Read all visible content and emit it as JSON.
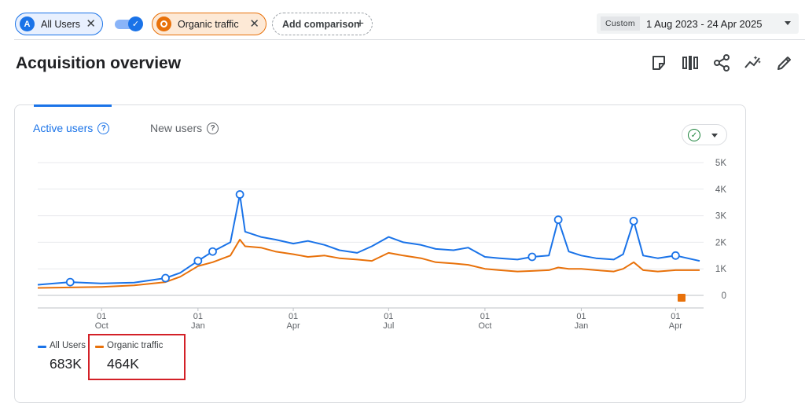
{
  "comparisons": {
    "segment_1": {
      "badge": "A",
      "label": "All Users"
    },
    "segment_2": {
      "label": "Organic traffic"
    },
    "add_label": "Add comparison"
  },
  "date_range": {
    "tag": "Custom",
    "value": "1 Aug 2023 - 24 Apr 2025"
  },
  "page_title": "Acquisition overview",
  "title_icons": [
    "edit-note-icon",
    "compare-columns-icon",
    "share-icon",
    "insights-icon",
    "pencil-icon"
  ],
  "tabs": [
    {
      "label": "Active users",
      "active": true
    },
    {
      "label": "New users",
      "active": false
    }
  ],
  "legend": [
    {
      "name": "All Users",
      "value": "683K",
      "color": "#1a73e8"
    },
    {
      "name": "Organic traffic",
      "value": "464K",
      "color": "#e8710a"
    }
  ],
  "chart_data": {
    "type": "line",
    "y_ticks": [
      "5K",
      "4K",
      "3K",
      "2K",
      "1K",
      "0"
    ],
    "ylim": [
      0,
      5000
    ],
    "x_ticks": [
      {
        "day": "01",
        "month": "Oct"
      },
      {
        "day": "01",
        "month": "Jan"
      },
      {
        "day": "01",
        "month": "Apr"
      },
      {
        "day": "01",
        "month": "Jul"
      },
      {
        "day": "01",
        "month": "Oct"
      },
      {
        "day": "01",
        "month": "Jan"
      },
      {
        "day": "01",
        "month": "Apr"
      }
    ],
    "x": [
      "2023-08-01",
      "2023-09-01",
      "2023-10-01",
      "2023-11-01",
      "2023-12-01",
      "2023-12-15",
      "2024-01-01",
      "2024-01-15",
      "2024-02-01",
      "2024-02-10",
      "2024-02-15",
      "2024-03-01",
      "2024-03-15",
      "2024-04-01",
      "2024-04-15",
      "2024-05-01",
      "2024-05-15",
      "2024-06-01",
      "2024-06-15",
      "2024-07-01",
      "2024-07-15",
      "2024-08-01",
      "2024-08-15",
      "2024-09-01",
      "2024-09-15",
      "2024-10-01",
      "2024-10-15",
      "2024-11-01",
      "2024-11-15",
      "2024-12-01",
      "2024-12-10",
      "2024-12-20",
      "2025-01-01",
      "2025-01-15",
      "2025-02-01",
      "2025-02-10",
      "2025-02-20",
      "2025-03-01",
      "2025-03-15",
      "2025-04-01",
      "2025-04-24"
    ],
    "series": [
      {
        "name": "All Users",
        "color": "#1a73e8",
        "values": [
          400,
          500,
          450,
          480,
          650,
          850,
          1300,
          1650,
          2000,
          3800,
          2400,
          2200,
          2100,
          1950,
          2050,
          1900,
          1700,
          1600,
          1850,
          2200,
          2000,
          1900,
          1750,
          1700,
          1800,
          1450,
          1400,
          1350,
          1450,
          1500,
          2850,
          1650,
          1500,
          1400,
          1350,
          1550,
          2800,
          1500,
          1400,
          1500,
          1300
        ]
      },
      {
        "name": "Organic traffic",
        "color": "#e8710a",
        "values": [
          280,
          300,
          320,
          380,
          500,
          700,
          1100,
          1250,
          1500,
          2100,
          1850,
          1800,
          1650,
          1550,
          1450,
          1500,
          1400,
          1350,
          1300,
          1600,
          1500,
          1400,
          1250,
          1200,
          1150,
          1000,
          950,
          900,
          920,
          950,
          1050,
          1000,
          1000,
          950,
          900,
          1000,
          1250,
          950,
          900,
          950,
          950
        ]
      }
    ]
  }
}
